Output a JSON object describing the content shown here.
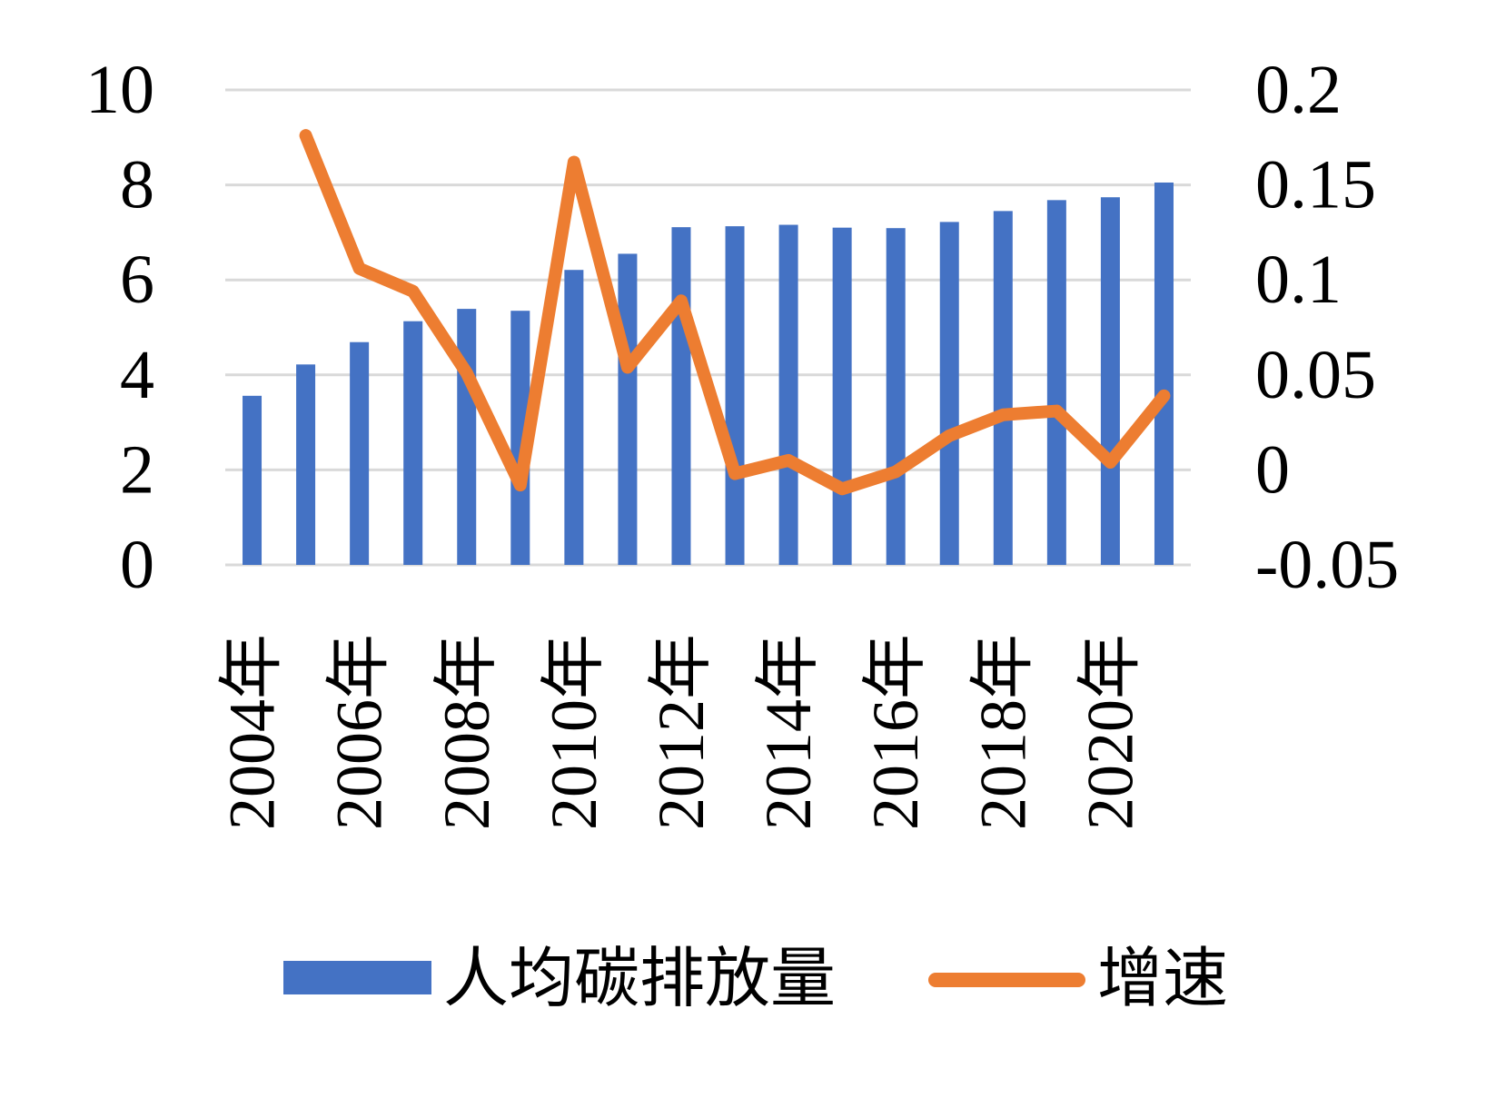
{
  "chart_data": {
    "type": "combo",
    "title": "",
    "categories": [
      "2004年",
      "2005年",
      "2006年",
      "2007年",
      "2008年",
      "2009年",
      "2010年",
      "2011年",
      "2012年",
      "2013年",
      "2014年",
      "2015年",
      "2016年",
      "2017年",
      "2018年",
      "2019年",
      "2020年",
      "2021年"
    ],
    "x_axis_tick_labels": [
      "2004年",
      "2006年",
      "2008年",
      "2010年",
      "2012年",
      "2014年",
      "2016年",
      "2018年",
      "2020年"
    ],
    "x_tick_step": 2,
    "series": [
      {
        "name": "人均碳排放量",
        "type": "bar",
        "axis": "left",
        "color": "#4472C4",
        "values": [
          3.56,
          4.22,
          4.69,
          5.13,
          5.39,
          5.35,
          6.21,
          6.55,
          7.11,
          7.13,
          7.16,
          7.1,
          7.09,
          7.22,
          7.45,
          7.68,
          7.74,
          8.05
        ]
      },
      {
        "name": "增速",
        "type": "line",
        "axis": "right",
        "color": "#ED7D31",
        "values": [
          null,
          0.176,
          0.106,
          0.094,
          0.051,
          -0.008,
          0.162,
          0.054,
          0.089,
          -0.002,
          0.005,
          -0.01,
          -0.001,
          0.018,
          0.029,
          0.031,
          0.004,
          0.039
        ]
      }
    ],
    "left_axis": {
      "ticks": [
        "0",
        "2",
        "4",
        "6",
        "8",
        "10"
      ],
      "min": 0,
      "max": 10
    },
    "right_axis": {
      "ticks": [
        "-0.05",
        "0",
        "0.05",
        "0.1",
        "0.15",
        "0.2"
      ],
      "min": -0.05,
      "max": 0.2
    },
    "grid": true,
    "gridline_color": "#D9D9D9",
    "legend_position": "bottom"
  },
  "legend": {
    "items": [
      {
        "label": "人均碳排放量",
        "swatch": "bar"
      },
      {
        "label": "增速",
        "swatch": "line"
      }
    ]
  }
}
